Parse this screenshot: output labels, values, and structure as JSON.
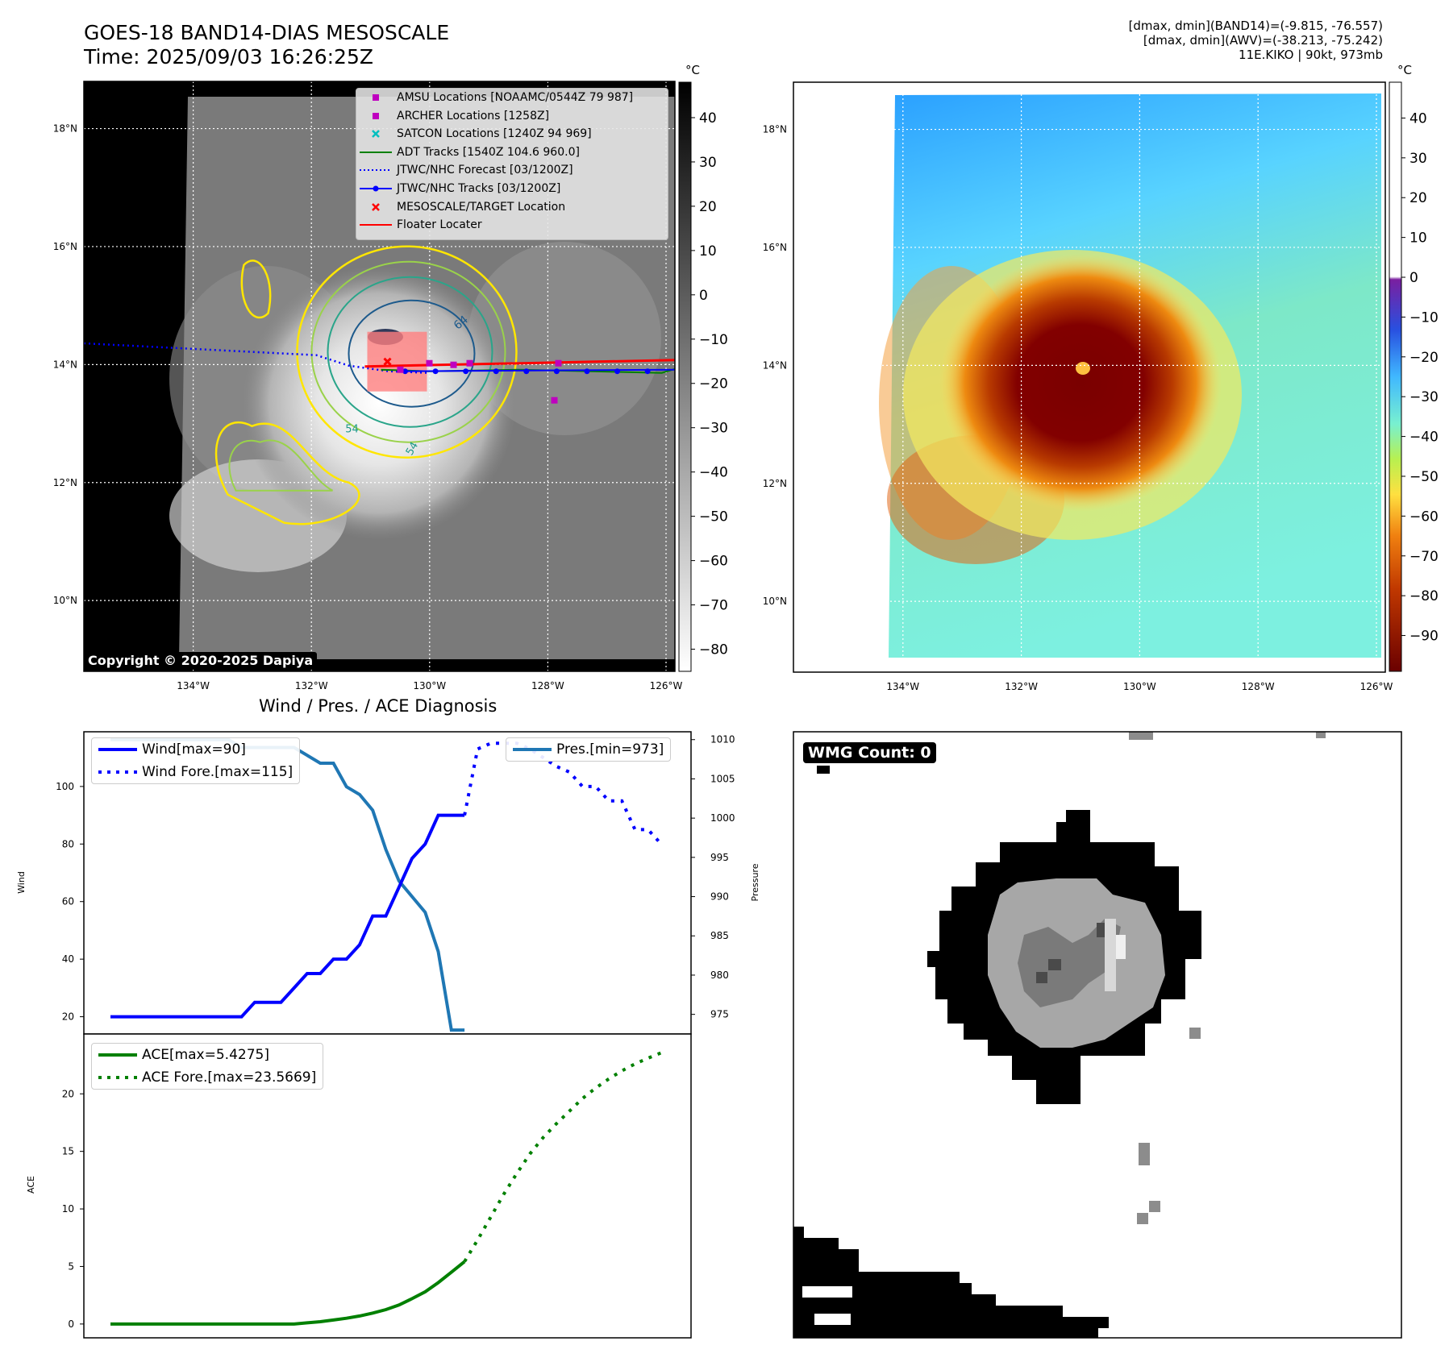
{
  "header": {
    "title_line1": "GOES-18 BAND14-DIAS MESOSCALE",
    "title_line2": "Time: 2025/09/03 16:26:25Z",
    "info_line1": "[dmax, dmin](BAND14)=(-9.815, -76.557)",
    "info_line2": "[dmax, dmin](AWV)=(-38.213, -75.242)",
    "info_line3": "11E.KIKO | 90kt, 973mb"
  },
  "copyright": "Copyright © 2020-2025 Dapiya",
  "map": {
    "lat_labels": [
      "18°N",
      "16°N",
      "14°N",
      "12°N",
      "10°N"
    ],
    "lon_labels": [
      "134°W",
      "132°W",
      "130°W",
      "128°W",
      "126°W"
    ],
    "lat_values": [
      18,
      16,
      14,
      12,
      10
    ],
    "lon_values": [
      -134,
      -132,
      -130,
      -128,
      -126
    ],
    "extent": {
      "lon_min": -135.85,
      "lon_max": -125.85,
      "lat_min": 8.8,
      "lat_max": 18.8
    },
    "contour_labels": [
      "64",
      "54",
      "54"
    ],
    "storm_center": {
      "lon": -130.55,
      "lat": 14.05
    },
    "track_lon_end": -125.8,
    "forecast_start": {
      "lon": -135.85,
      "lat": 14.36
    }
  },
  "legend_items": [
    {
      "label": "AMSU Locations [NOAAMC/0544Z 79 987]",
      "marker": "square",
      "color": "#bf00bf"
    },
    {
      "label": "ARCHER Locations [1258Z]",
      "marker": "square",
      "color": "#bf00bf"
    },
    {
      "label": "SATCON Locations [1240Z 94 969]",
      "marker": "x",
      "color": "#00bfbf"
    },
    {
      "label": "ADT Tracks [1540Z 104.6 960.0]",
      "marker": "line",
      "color": "#008000"
    },
    {
      "label": "JTWC/NHC Forecast [03/1200Z]",
      "marker": "dotted",
      "color": "#0000ff"
    },
    {
      "label": "JTWC/NHC Tracks [03/1200Z]",
      "marker": "line-dot",
      "color": "#0000ff"
    },
    {
      "label": "MESOSCALE/TARGET Location",
      "marker": "x",
      "color": "#ff0000"
    },
    {
      "label": "Floater Locater",
      "marker": "line",
      "color": "#ff0000"
    }
  ],
  "colorbar_gray": {
    "unit": "°C",
    "ticks": [
      "40",
      "30",
      "20",
      "10",
      "0",
      "−10",
      "−20",
      "−30",
      "−40",
      "−50",
      "−60",
      "−70",
      "−80"
    ],
    "range": [
      48,
      -85
    ]
  },
  "colorbar_color": {
    "unit": "°C",
    "ticks": [
      "40",
      "30",
      "20",
      "10",
      "0",
      "−10",
      "−20",
      "−30",
      "−40",
      "−50",
      "−60",
      "−70",
      "−80",
      "−90"
    ],
    "range": [
      49,
      -99
    ]
  },
  "colors": {
    "wind": "#0000ff",
    "pressure": "#1f77b4",
    "ace": "#008000",
    "red": "#ff0000"
  },
  "wmg_count": "WMG Count: 0",
  "chart_data": [
    {
      "type": "line",
      "title": "Wind / Pres. / ACE Diagnosis",
      "ylabel": "Wind",
      "y2label": "Pressure",
      "ylim": [
        14,
        119
      ],
      "y2lim": [
        972.5,
        1011
      ],
      "yticks": [
        "100",
        "80",
        "60",
        "40",
        "20"
      ],
      "y2ticks": [
        "1010",
        "1005",
        "1000",
        "995",
        "990",
        "985",
        "980",
        "975"
      ],
      "series": [
        {
          "name": "Wind[max=90]",
          "style": "solid",
          "axis": "left",
          "values": [
            20,
            20,
            20,
            20,
            20,
            20,
            20,
            20,
            20,
            20,
            20,
            25,
            25,
            25,
            30,
            35,
            35,
            40,
            40,
            45,
            55,
            55,
            65,
            75,
            80,
            90,
            90,
            90
          ]
        },
        {
          "name": "Wind Fore.[max=115]",
          "style": "dotted",
          "axis": "left",
          "values": [
            null,
            null,
            null,
            null,
            null,
            null,
            null,
            null,
            null,
            null,
            null,
            null,
            null,
            null,
            null,
            null,
            null,
            null,
            null,
            null,
            null,
            null,
            null,
            null,
            null,
            null,
            null,
            90,
            113,
            115,
            115,
            115,
            113,
            110,
            107,
            105,
            100,
            100,
            95,
            95,
            85,
            85,
            80
          ]
        },
        {
          "name": "Pres.[min=973]",
          "style": "solid",
          "axis": "right",
          "values": [
            1010,
            1010,
            1010,
            1010,
            1010,
            1010,
            1010,
            1010,
            1010,
            1010,
            1009,
            1009,
            1009,
            1009,
            1009,
            1008,
            1007,
            1007,
            1004,
            1003,
            1001,
            996,
            992,
            990,
            988,
            983,
            973,
            973
          ]
        }
      ]
    },
    {
      "type": "line",
      "ylabel": "ACE",
      "ylim": [
        -1.2,
        25.2
      ],
      "yticks": [
        "20",
        "15",
        "10",
        "5",
        "0"
      ],
      "series": [
        {
          "name": "ACE[max=5.4275]",
          "style": "solid",
          "values": [
            0,
            0,
            0,
            0,
            0,
            0,
            0,
            0,
            0,
            0,
            0,
            0,
            0,
            0,
            0,
            0.1,
            0.2,
            0.35,
            0.5,
            0.7,
            0.95,
            1.25,
            1.65,
            2.2,
            2.8,
            3.6,
            4.5,
            5.4275
          ]
        },
        {
          "name": "ACE Fore.[max=23.5669]",
          "style": "dotted",
          "values": [
            null,
            null,
            null,
            null,
            null,
            null,
            null,
            null,
            null,
            null,
            null,
            null,
            null,
            null,
            null,
            null,
            null,
            null,
            null,
            null,
            null,
            null,
            null,
            null,
            null,
            null,
            null,
            5.4275,
            7.3,
            9.3,
            11.3,
            13.1,
            14.8,
            16.2,
            17.4,
            18.5,
            19.6,
            20.5,
            21.3,
            22.0,
            22.6,
            23.1,
            23.5669
          ]
        }
      ]
    }
  ]
}
